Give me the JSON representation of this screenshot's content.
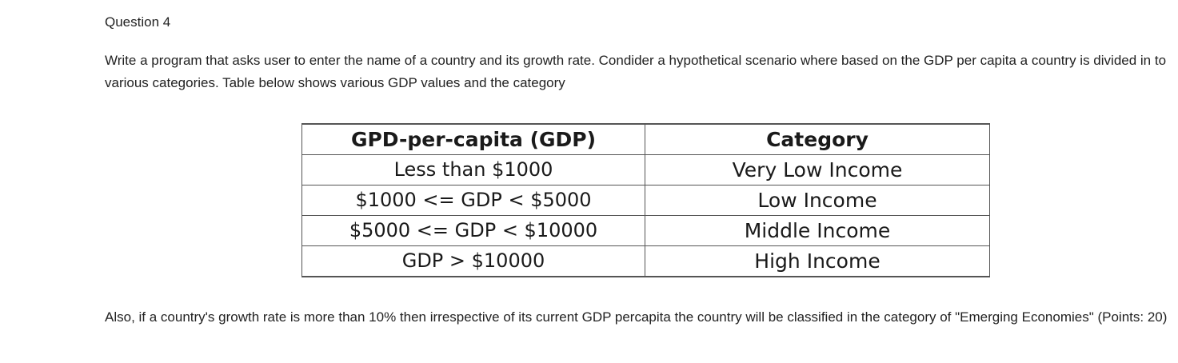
{
  "question": {
    "title": "Question 4",
    "intro": "Write a program that asks user to enter the name of a country and its growth rate. Condider a hypothetical scenario where based on the GDP per capita a country is divided in to various categories. Table below shows various GDP values and the category",
    "outro": "Also, if a country's growth rate is more than 10% then irrespective of its current GDP percapita the country will be classified in the category of \"Emerging Economies\" (Points: 20)"
  },
  "table": {
    "headers": [
      "GPD-per-capita (GDP)",
      "Category"
    ],
    "rows": [
      [
        "Less than $1000",
        "Very Low Income"
      ],
      [
        "$1000 <= GDP < $5000",
        "Low Income"
      ],
      [
        "$5000 <= GDP < $10000",
        "Middle Income"
      ],
      [
        "GDP > $10000",
        "High Income"
      ]
    ]
  }
}
